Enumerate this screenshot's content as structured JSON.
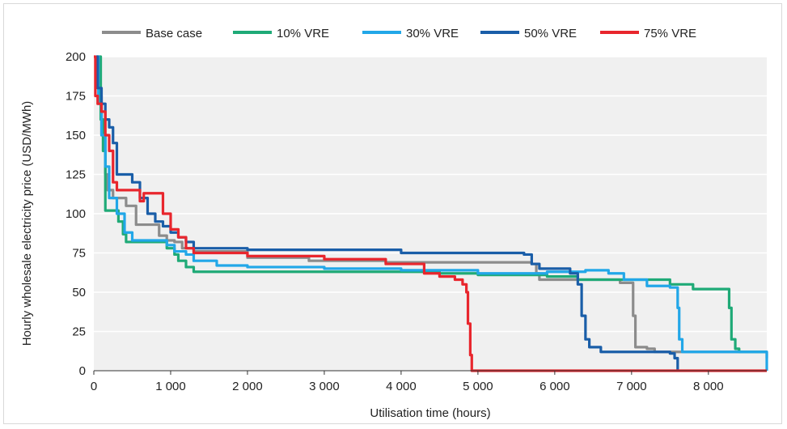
{
  "chart_data": {
    "type": "line",
    "title": "",
    "xlabel": "Utilisation time (hours)",
    "ylabel": "Hourly wholesale electricity price (USD/MWh)",
    "xlim": [
      0,
      8760
    ],
    "ylim": [
      0,
      200
    ],
    "xticks": [
      0,
      1000,
      2000,
      3000,
      4000,
      5000,
      6000,
      7000,
      8000
    ],
    "xtick_labels": [
      "0",
      "1 000",
      "2 000",
      "3 000",
      "4 000",
      "5 000",
      "6 000",
      "7 000",
      "8 000"
    ],
    "yticks": [
      0,
      25,
      50,
      75,
      100,
      125,
      150,
      175,
      200
    ],
    "ytick_labels": [
      "0",
      "25",
      "50",
      "75",
      "100",
      "125",
      "150",
      "175",
      "200"
    ],
    "grid": "horizontal",
    "legend_position": "top",
    "series": [
      {
        "name": "Base case",
        "color": "#8c8c8c",
        "points": [
          [
            50,
            200
          ],
          [
            70,
            175
          ],
          [
            100,
            150
          ],
          [
            150,
            125
          ],
          [
            180,
            115
          ],
          [
            250,
            110
          ],
          [
            350,
            110
          ],
          [
            420,
            105
          ],
          [
            550,
            93
          ],
          [
            700,
            93
          ],
          [
            850,
            86
          ],
          [
            950,
            83
          ],
          [
            1050,
            82
          ],
          [
            1150,
            78
          ],
          [
            1300,
            76
          ],
          [
            2000,
            72
          ],
          [
            2800,
            70
          ],
          [
            3800,
            69
          ],
          [
            5700,
            68
          ],
          [
            5760,
            62
          ],
          [
            5800,
            58
          ],
          [
            6800,
            58
          ],
          [
            6850,
            56
          ],
          [
            7000,
            56
          ],
          [
            7020,
            35
          ],
          [
            7050,
            15
          ],
          [
            7200,
            14
          ],
          [
            7300,
            12
          ],
          [
            8700,
            12
          ],
          [
            8760,
            8
          ]
        ]
      },
      {
        "name": "10% VRE",
        "color": "#1faa77",
        "points": [
          [
            70,
            200
          ],
          [
            90,
            160
          ],
          [
            120,
            140
          ],
          [
            150,
            102
          ],
          [
            300,
            102
          ],
          [
            320,
            95
          ],
          [
            380,
            87
          ],
          [
            420,
            82
          ],
          [
            900,
            82
          ],
          [
            950,
            78
          ],
          [
            1050,
            74
          ],
          [
            1100,
            70
          ],
          [
            1200,
            66
          ],
          [
            1300,
            63
          ],
          [
            3000,
            63
          ],
          [
            4500,
            62
          ],
          [
            5000,
            61
          ],
          [
            5900,
            60
          ],
          [
            6100,
            60
          ],
          [
            6300,
            58
          ],
          [
            7500,
            55
          ],
          [
            7800,
            52
          ],
          [
            8250,
            52
          ],
          [
            8270,
            40
          ],
          [
            8300,
            20
          ],
          [
            8350,
            14
          ],
          [
            8400,
            12
          ],
          [
            8760,
            12
          ]
        ]
      },
      {
        "name": "30% VRE",
        "color": "#22a7e8",
        "points": [
          [
            40,
            200
          ],
          [
            60,
            170
          ],
          [
            100,
            150
          ],
          [
            150,
            130
          ],
          [
            200,
            110
          ],
          [
            280,
            110
          ],
          [
            300,
            100
          ],
          [
            400,
            88
          ],
          [
            500,
            83
          ],
          [
            900,
            83
          ],
          [
            950,
            80
          ],
          [
            1050,
            76
          ],
          [
            1200,
            74
          ],
          [
            1300,
            70
          ],
          [
            1600,
            67
          ],
          [
            2000,
            66
          ],
          [
            3000,
            65
          ],
          [
            4000,
            64
          ],
          [
            5000,
            62
          ],
          [
            5800,
            62
          ],
          [
            5900,
            63
          ],
          [
            6400,
            64
          ],
          [
            6700,
            62
          ],
          [
            6900,
            58
          ],
          [
            7200,
            54
          ],
          [
            7500,
            53
          ],
          [
            7560,
            53
          ],
          [
            7600,
            40
          ],
          [
            7620,
            20
          ],
          [
            7660,
            12
          ],
          [
            8760,
            12
          ],
          [
            8760,
            0
          ]
        ]
      },
      {
        "name": "50% VRE",
        "color": "#1a5ea8",
        "points": [
          [
            30,
            200
          ],
          [
            50,
            180
          ],
          [
            100,
            170
          ],
          [
            150,
            160
          ],
          [
            200,
            155
          ],
          [
            250,
            145
          ],
          [
            300,
            125
          ],
          [
            450,
            125
          ],
          [
            500,
            120
          ],
          [
            600,
            110
          ],
          [
            700,
            100
          ],
          [
            800,
            95
          ],
          [
            900,
            92
          ],
          [
            1000,
            88
          ],
          [
            1100,
            85
          ],
          [
            1200,
            82
          ],
          [
            1300,
            78
          ],
          [
            2000,
            77
          ],
          [
            3000,
            77
          ],
          [
            4000,
            75
          ],
          [
            5600,
            74
          ],
          [
            5700,
            68
          ],
          [
            5800,
            65
          ],
          [
            6200,
            62
          ],
          [
            6300,
            55
          ],
          [
            6350,
            35
          ],
          [
            6400,
            20
          ],
          [
            6450,
            15
          ],
          [
            6600,
            12
          ],
          [
            7500,
            11
          ],
          [
            7560,
            8
          ],
          [
            7600,
            0
          ]
        ]
      },
      {
        "name": "75% VRE",
        "color": "#e8262d",
        "points": [
          [
            0,
            200
          ],
          [
            20,
            175
          ],
          [
            50,
            170
          ],
          [
            100,
            165
          ],
          [
            150,
            150
          ],
          [
            200,
            140
          ],
          [
            250,
            120
          ],
          [
            300,
            115
          ],
          [
            500,
            115
          ],
          [
            600,
            108
          ],
          [
            650,
            113
          ],
          [
            800,
            113
          ],
          [
            900,
            100
          ],
          [
            1000,
            90
          ],
          [
            1100,
            85
          ],
          [
            1200,
            78
          ],
          [
            1300,
            75
          ],
          [
            2000,
            73
          ],
          [
            3000,
            71
          ],
          [
            3800,
            68
          ],
          [
            4200,
            68
          ],
          [
            4300,
            62
          ],
          [
            4500,
            60
          ],
          [
            4700,
            58
          ],
          [
            4800,
            55
          ],
          [
            4850,
            50
          ],
          [
            4870,
            30
          ],
          [
            4900,
            10
          ],
          [
            4920,
            0
          ],
          [
            8760,
            0
          ]
        ]
      }
    ]
  }
}
